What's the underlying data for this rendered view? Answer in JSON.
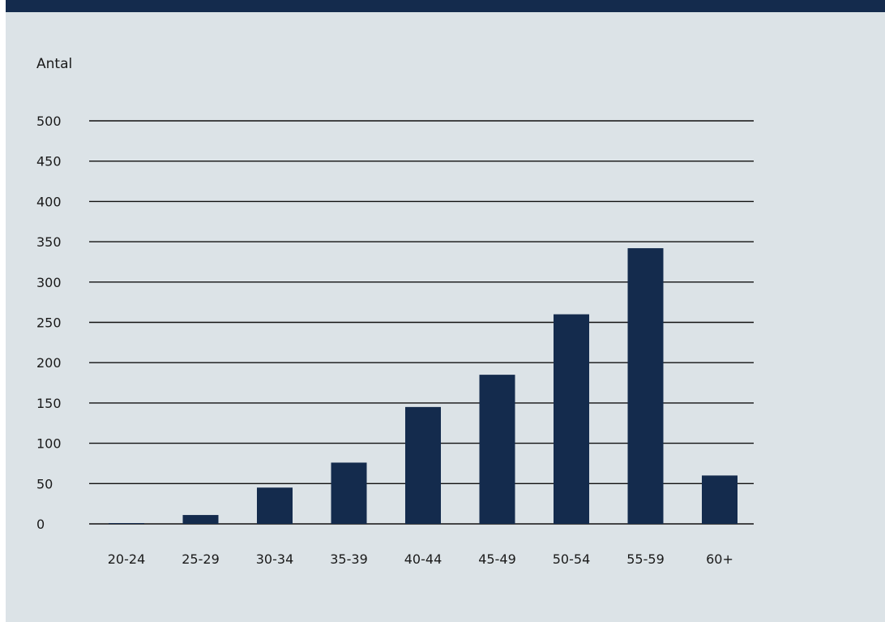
{
  "colors": {
    "header": "#142b4d",
    "background": "#dce3e7",
    "bar": "#142b4d",
    "text": "#1a1a1a",
    "grid": "#111111"
  },
  "chart_data": {
    "type": "bar",
    "title": "",
    "xlabel": "",
    "ylabel": "Antal",
    "categories": [
      "20-24",
      "25-29",
      "30-34",
      "35-39",
      "40-44",
      "45-49",
      "50-54",
      "55-59",
      "60+"
    ],
    "values": [
      1,
      11,
      45,
      76,
      145,
      185,
      260,
      342,
      60
    ],
    "ylim": [
      0,
      500
    ],
    "yticks": [
      0,
      50,
      100,
      150,
      200,
      250,
      300,
      350,
      400,
      450,
      500
    ],
    "grid": "horizontal",
    "legend": "none"
  }
}
